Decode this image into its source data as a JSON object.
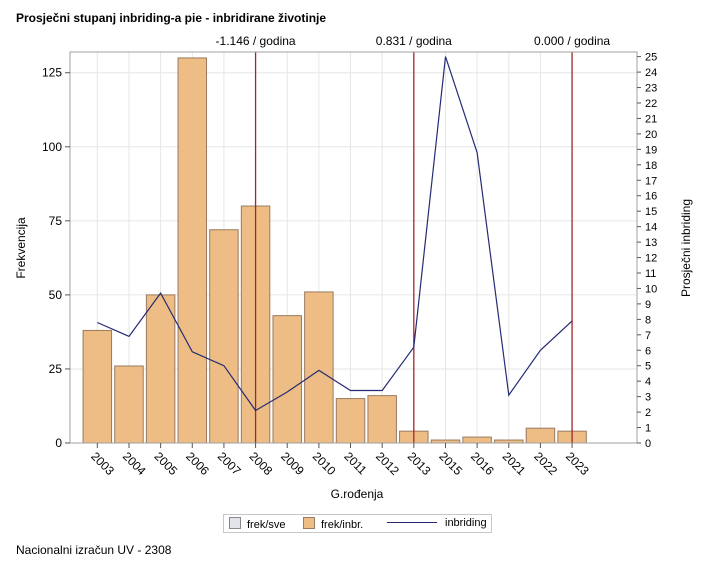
{
  "title": "Prosječni stupanj inbriding-a pie - inbridirane životinje",
  "footer": "Nacionalni izračun UV - 2308",
  "colors": {
    "bar_fill": "#EDBD85",
    "bar_stroke": "#9A7A60",
    "line": "#262B73",
    "ref_line": "#A0282C",
    "grid": "#E6E6E6",
    "legend_sve_fill": "#E2E3EB"
  },
  "legend": {
    "items": [
      {
        "label": "frek/sve",
        "kind": "swatch-sve"
      },
      {
        "label": "frek/inbr.",
        "kind": "swatch-inbr"
      },
      {
        "label": "inbriding",
        "kind": "line"
      }
    ]
  },
  "chart_data": {
    "type": "bar+line",
    "categories": [
      "2003",
      "2004",
      "2005",
      "2006",
      "2007",
      "2008",
      "2009",
      "2010",
      "2011",
      "2012",
      "2013",
      "2015",
      "2016",
      "2021",
      "2022",
      "2023"
    ],
    "series": [
      {
        "name": "frek/inbr.",
        "type": "bar",
        "axis": "left",
        "values": [
          38,
          26,
          50,
          130,
          72,
          80,
          43,
          51,
          15,
          16,
          4,
          1,
          2,
          1,
          5,
          4
        ]
      },
      {
        "name": "inbriding",
        "type": "line",
        "axis": "right",
        "values": [
          7.8,
          6.9,
          9.7,
          5.9,
          5.0,
          2.1,
          3.3,
          4.7,
          3.4,
          3.4,
          6.2,
          25.0,
          18.8,
          3.1,
          6.0,
          7.9
        ]
      }
    ],
    "xlabel": "G.rođenja",
    "ylabel_left": "Frekvencija",
    "ylabel_right": "Prosječni inbriding",
    "ylim_left": [
      0,
      132
    ],
    "yticks_left": [
      0,
      25,
      50,
      75,
      100,
      125
    ],
    "ylim_right": [
      0,
      25.3
    ],
    "yticks_right": [
      0,
      1,
      2,
      3,
      4,
      5,
      6,
      7,
      8,
      9,
      10,
      11,
      12,
      13,
      14,
      15,
      16,
      17,
      18,
      19,
      20,
      21,
      22,
      23,
      24,
      25
    ],
    "ref_lines": [
      {
        "category": "2008",
        "label": "-1.146 / godina"
      },
      {
        "category": "2013",
        "label": "0.831 / godina"
      },
      {
        "category": "2023",
        "label": "0.000 / godina"
      }
    ],
    "grid": true,
    "legend_position": "bottom"
  }
}
